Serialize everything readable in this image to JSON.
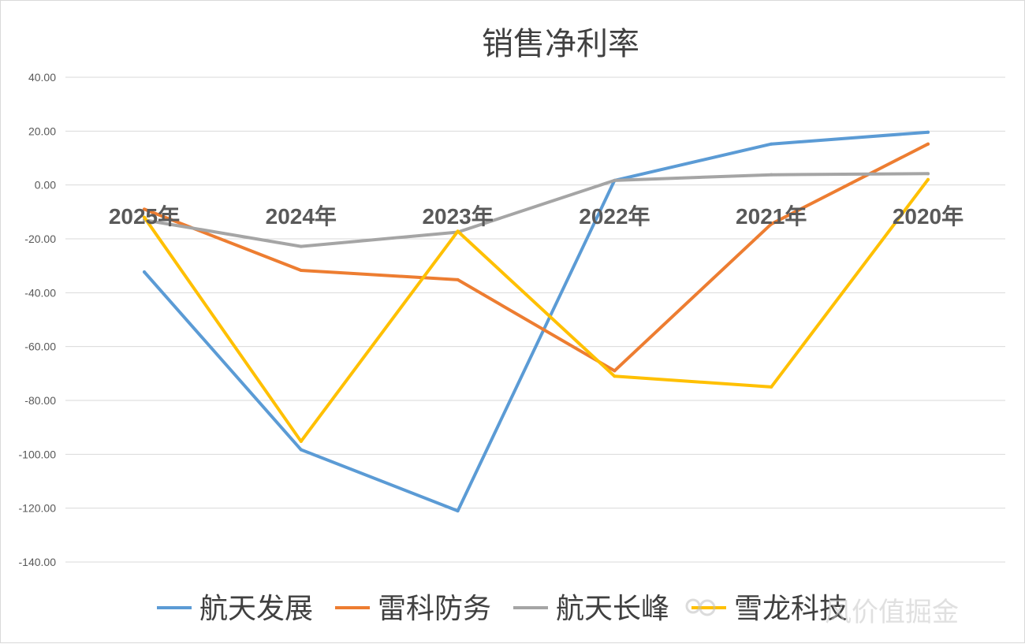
{
  "chart_data": {
    "type": "line",
    "title": "销售净利率",
    "categories": [
      "2025年",
      "2024年",
      "2023年",
      "2022年",
      "2021年",
      "2020年"
    ],
    "ylim": [
      -140,
      40
    ],
    "yticks": [
      "40.00",
      "20.00",
      "0.00",
      "-20.00",
      "-40.00",
      "-60.00",
      "-80.00",
      "-100.00",
      "-120.00",
      "-140.00"
    ],
    "ytick_values": [
      40,
      20,
      0,
      -20,
      -40,
      -60,
      -80,
      -100,
      -120,
      -140
    ],
    "grid": true,
    "legend_position": "bottom",
    "series": [
      {
        "name": "航天发展",
        "color": "#5b9bd5",
        "values": [
          -32.3,
          -98.3,
          -121.0,
          1.7,
          15.2,
          19.6
        ]
      },
      {
        "name": "雷科防务",
        "color": "#ed7d31",
        "values": [
          -9.0,
          -31.7,
          -35.2,
          -69.0,
          -14.5,
          15.2
        ]
      },
      {
        "name": "航天长峰",
        "color": "#a5a5a5",
        "values": [
          -13.0,
          -22.8,
          -17.5,
          1.7,
          3.8,
          4.2
        ]
      },
      {
        "name": "雪龙科技",
        "color": "#ffc000",
        "values": [
          -12.0,
          -95.2,
          -17.2,
          -71.0,
          -75.0,
          2.0
        ]
      }
    ]
  },
  "watermark": {
    "text": "风价值掘金"
  }
}
